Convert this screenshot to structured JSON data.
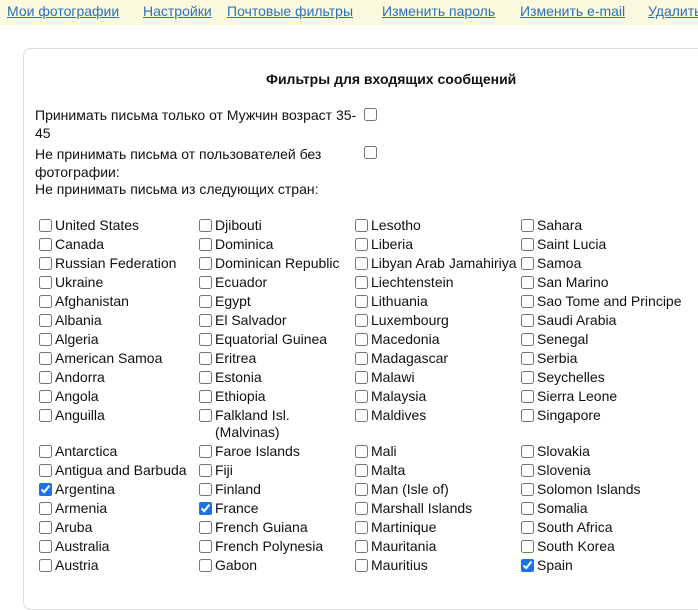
{
  "nav": {
    "links": [
      "Мои фотографии",
      "Настройки",
      "Почтовые фильтры",
      "Изменить пароль",
      "Изменить e-mail",
      "Удалить"
    ]
  },
  "form": {
    "title": "Фильтры для входящих сообщений",
    "options": [
      {
        "label": "Принимать письма только от Мужчин возраст 35-45",
        "checked": false
      },
      {
        "label": "Не принимать письма от пользователей без фотографии:",
        "checked": false
      }
    ],
    "countries_heading": "Не принимать письма из следующих стран:",
    "countries": [
      [
        {
          "label": "United States",
          "checked": false
        },
        {
          "label": "Djibouti",
          "checked": false
        },
        {
          "label": "Lesotho",
          "checked": false
        },
        {
          "label": "Sahara",
          "checked": false
        }
      ],
      [
        {
          "label": "Canada",
          "checked": false
        },
        {
          "label": "Dominica",
          "checked": false
        },
        {
          "label": "Liberia",
          "checked": false
        },
        {
          "label": "Saint Lucia",
          "checked": false
        }
      ],
      [
        {
          "label": "Russian Federation",
          "checked": false
        },
        {
          "label": "Dominican Republic",
          "checked": false
        },
        {
          "label": "Libyan Arab Jamahiriya",
          "checked": false
        },
        {
          "label": "Samoa",
          "checked": false
        }
      ],
      [
        {
          "label": "Ukraine",
          "checked": false
        },
        {
          "label": "Ecuador",
          "checked": false
        },
        {
          "label": "Liechtenstein",
          "checked": false
        },
        {
          "label": "San Marino",
          "checked": false
        }
      ],
      [
        {
          "label": "Afghanistan",
          "checked": false
        },
        {
          "label": "Egypt",
          "checked": false
        },
        {
          "label": "Lithuania",
          "checked": false
        },
        {
          "label": "Sao Tome and Principe",
          "checked": false
        }
      ],
      [
        {
          "label": "Albania",
          "checked": false
        },
        {
          "label": "El Salvador",
          "checked": false
        },
        {
          "label": "Luxembourg",
          "checked": false
        },
        {
          "label": "Saudi Arabia",
          "checked": false
        }
      ],
      [
        {
          "label": "Algeria",
          "checked": false
        },
        {
          "label": "Equatorial Guinea",
          "checked": false
        },
        {
          "label": "Macedonia",
          "checked": false
        },
        {
          "label": "Senegal",
          "checked": false
        }
      ],
      [
        {
          "label": "American Samoa",
          "checked": false
        },
        {
          "label": "Eritrea",
          "checked": false
        },
        {
          "label": "Madagascar",
          "checked": false
        },
        {
          "label": "Serbia",
          "checked": false
        }
      ],
      [
        {
          "label": "Andorra",
          "checked": false
        },
        {
          "label": "Estonia",
          "checked": false
        },
        {
          "label": "Malawi",
          "checked": false
        },
        {
          "label": "Seychelles",
          "checked": false
        }
      ],
      [
        {
          "label": "Angola",
          "checked": false
        },
        {
          "label": "Ethiopia",
          "checked": false
        },
        {
          "label": "Malaysia",
          "checked": false
        },
        {
          "label": "Sierra Leone",
          "checked": false
        }
      ],
      [
        {
          "label": "Anguilla",
          "checked": false
        },
        {
          "label": "Falkland Isl. (Malvinas)",
          "checked": false
        },
        {
          "label": "Maldives",
          "checked": false
        },
        {
          "label": "Singapore",
          "checked": false
        }
      ],
      [
        {
          "label": "Antarctica",
          "checked": false
        },
        {
          "label": "Faroe Islands",
          "checked": false
        },
        {
          "label": "Mali",
          "checked": false
        },
        {
          "label": "Slovakia",
          "checked": false
        }
      ],
      [
        {
          "label": "Antigua and Barbuda",
          "checked": false
        },
        {
          "label": "Fiji",
          "checked": false
        },
        {
          "label": "Malta",
          "checked": false
        },
        {
          "label": "Slovenia",
          "checked": false
        }
      ],
      [
        {
          "label": "Argentina",
          "checked": true
        },
        {
          "label": "Finland",
          "checked": false
        },
        {
          "label": "Man (Isle of)",
          "checked": false
        },
        {
          "label": "Solomon Islands",
          "checked": false
        }
      ],
      [
        {
          "label": "Armenia",
          "checked": false
        },
        {
          "label": "France",
          "checked": true
        },
        {
          "label": "Marshall Islands",
          "checked": false
        },
        {
          "label": "Somalia",
          "checked": false
        }
      ],
      [
        {
          "label": "Aruba",
          "checked": false
        },
        {
          "label": "French Guiana",
          "checked": false
        },
        {
          "label": "Martinique",
          "checked": false
        },
        {
          "label": "South Africa",
          "checked": false
        }
      ],
      [
        {
          "label": "Australia",
          "checked": false
        },
        {
          "label": "French Polynesia",
          "checked": false
        },
        {
          "label": "Mauritania",
          "checked": false
        },
        {
          "label": "South Korea",
          "checked": false
        }
      ],
      [
        {
          "label": "Austria",
          "checked": false
        },
        {
          "label": "Gabon",
          "checked": false
        },
        {
          "label": "Mauritius",
          "checked": false
        },
        {
          "label": "Spain",
          "checked": true
        }
      ]
    ]
  }
}
